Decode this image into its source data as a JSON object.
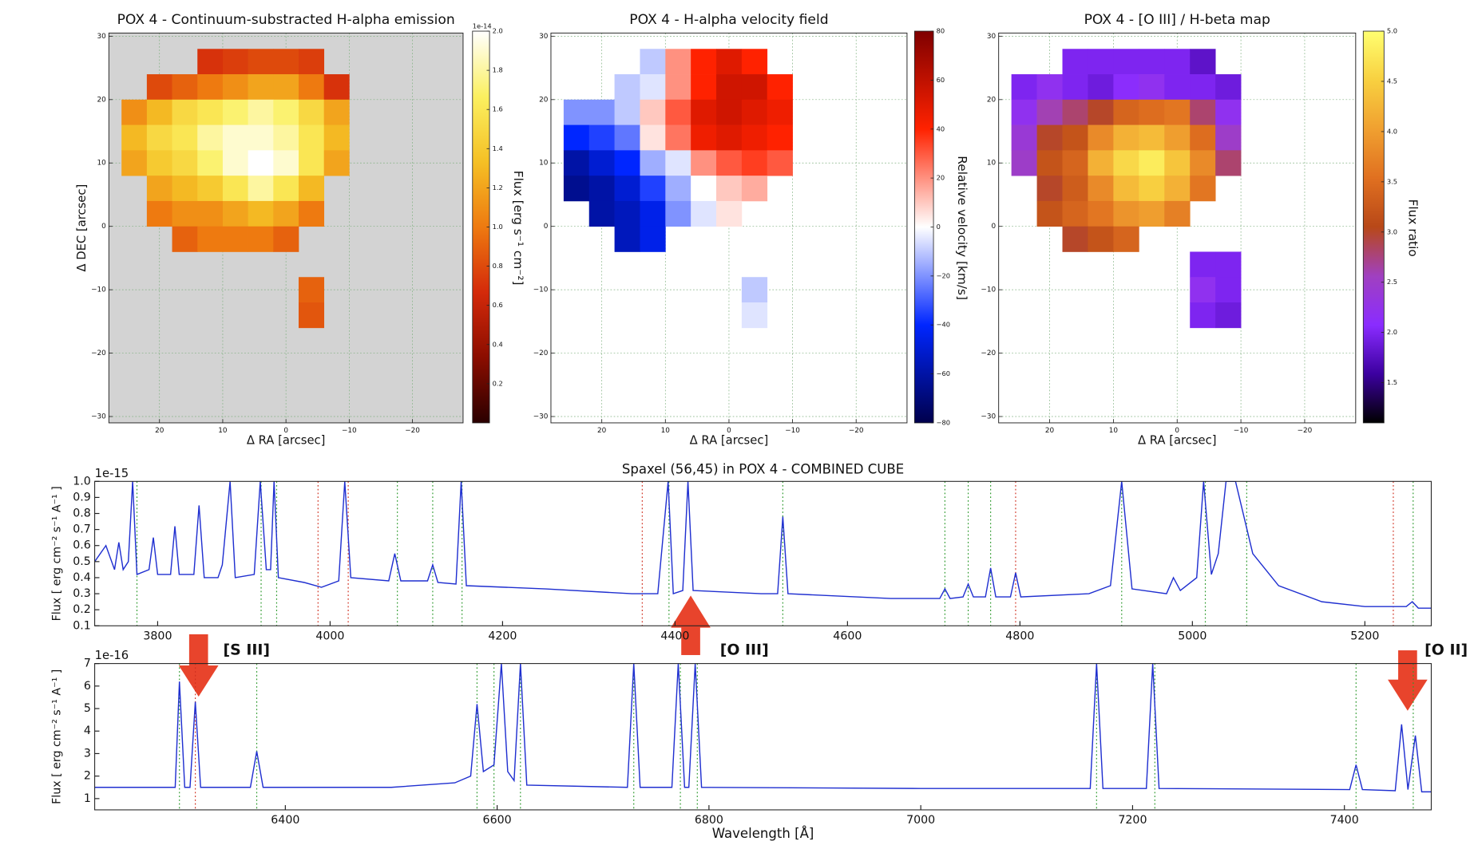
{
  "chart_data": [
    {
      "type": "heatmap",
      "title": "POX 4 - Continuum-substracted H-alpha emission",
      "xlabel": "Δ RA [arcsec]",
      "ylabel": "Δ DEC [arcsec]",
      "background": "#d3d3d3",
      "grid": true,
      "xlim": [
        28,
        -28
      ],
      "ylim": [
        -31,
        30.5
      ],
      "xticks": [
        20,
        10,
        0,
        {
          "value": -10,
          "label": "−10"
        },
        {
          "value": -20,
          "label": "−20"
        }
      ],
      "yticks": [
        {
          "value": -30,
          "label": "−30"
        },
        {
          "value": -20,
          "label": "−20"
        },
        {
          "value": -10,
          "label": "−10"
        },
        0,
        10,
        20,
        30
      ],
      "x": [
        24,
        20,
        16,
        12,
        8,
        4,
        0,
        -4,
        -8
      ],
      "y": [
        26,
        22,
        18,
        14,
        10,
        6,
        2,
        -2,
        -6,
        -10,
        -14
      ],
      "z": [
        [
          null,
          null,
          null,
          0.7,
          0.75,
          0.8,
          0.8,
          0.75,
          null
        ],
        [
          null,
          0.8,
          0.9,
          1.0,
          1.1,
          1.2,
          1.2,
          1.0,
          0.7
        ],
        [
          1.1,
          1.3,
          1.5,
          1.6,
          1.7,
          1.8,
          1.7,
          1.5,
          1.2
        ],
        [
          1.3,
          1.5,
          1.6,
          1.8,
          1.9,
          1.9,
          1.8,
          1.6,
          1.3
        ],
        [
          1.2,
          1.4,
          1.5,
          1.7,
          1.9,
          2.0,
          1.9,
          1.6,
          1.2
        ],
        [
          null,
          1.2,
          1.3,
          1.4,
          1.6,
          1.8,
          1.6,
          1.3,
          null
        ],
        [
          null,
          1.0,
          1.1,
          1.1,
          1.2,
          1.3,
          1.2,
          1.0,
          null
        ],
        [
          null,
          null,
          0.9,
          1.0,
          1.0,
          1.0,
          0.9,
          null,
          null
        ],
        [
          null,
          null,
          null,
          null,
          null,
          null,
          null,
          null,
          null
        ],
        [
          null,
          null,
          null,
          null,
          null,
          null,
          null,
          0.9,
          null
        ],
        [
          null,
          null,
          null,
          null,
          null,
          null,
          null,
          0.85,
          null
        ]
      ],
      "colorbar": {
        "label": "Flux [erg s⁻¹ cm⁻²]",
        "offset_label": "1e-14",
        "lim": [
          0,
          2
        ],
        "ticks": [
          0.2,
          0.4,
          0.6,
          0.8,
          {
            "value": 1,
            "label": "1.0"
          },
          1.2,
          1.4,
          1.6,
          1.8,
          {
            "value": 2,
            "label": "2.0"
          }
        ],
        "colors": [
          "#2a0000",
          "#8b0d00",
          "#d42a0a",
          "#ee7a10",
          "#f5c025",
          "#fbf060",
          "#ffffff"
        ]
      }
    },
    {
      "type": "heatmap",
      "title": "POX 4 - H-alpha velocity field",
      "xlabel": "Δ RA [arcsec]",
      "background": "#ffffff",
      "grid": true,
      "xlim": [
        28,
        -28
      ],
      "ylim": [
        -31,
        30.5
      ],
      "xticks": [
        20,
        10,
        0,
        {
          "value": -10,
          "label": "−10"
        },
        {
          "value": -20,
          "label": "−20"
        }
      ],
      "yticks": [
        {
          "value": -30,
          "label": "−30"
        },
        {
          "value": -20,
          "label": "−20"
        },
        {
          "value": -10,
          "label": "−10"
        },
        0,
        10,
        20,
        30
      ],
      "x": [
        24,
        20,
        16,
        12,
        8,
        4,
        0,
        -4,
        -8
      ],
      "y": [
        26,
        22,
        18,
        14,
        10,
        6,
        2,
        -2,
        -6,
        -10,
        -14
      ],
      "z": [
        [
          null,
          null,
          null,
          -10,
          20,
          40,
          50,
          40,
          null
        ],
        [
          null,
          null,
          -10,
          -5,
          20,
          40,
          55,
          55,
          40
        ],
        [
          -20,
          -20,
          -10,
          10,
          30,
          50,
          55,
          50,
          45
        ],
        [
          -40,
          -35,
          -25,
          5,
          25,
          45,
          50,
          45,
          40
        ],
        [
          -60,
          -50,
          -40,
          -15,
          -5,
          20,
          30,
          35,
          30
        ],
        [
          -65,
          -60,
          -50,
          -35,
          -15,
          0,
          10,
          15,
          null
        ],
        [
          null,
          -60,
          -55,
          -45,
          -20,
          -5,
          5,
          null,
          null
        ],
        [
          null,
          null,
          -55,
          -45,
          null,
          null,
          null,
          null,
          null
        ],
        [
          null,
          null,
          null,
          null,
          null,
          null,
          null,
          null,
          null
        ],
        [
          null,
          null,
          null,
          null,
          null,
          null,
          null,
          -10,
          null
        ],
        [
          null,
          null,
          null,
          null,
          null,
          null,
          null,
          -5,
          null
        ]
      ],
      "colorbar": {
        "label": "Relative velocity [km/s]",
        "lim": [
          -80,
          80
        ],
        "ticks": [
          {
            "value": -80,
            "label": "−80"
          },
          {
            "value": -60,
            "label": "−60"
          },
          {
            "value": -40,
            "label": "−40"
          },
          {
            "value": -20,
            "label": "−20"
          },
          0,
          20,
          40,
          60,
          80
        ],
        "colors": [
          "#00004c",
          "#0026ff",
          "#ffffff",
          "#ff2200",
          "#7f0000"
        ]
      }
    },
    {
      "type": "heatmap",
      "title": "POX 4 - [O III] / H-beta map",
      "xlabel": "Δ RA [arcsec]",
      "background": "#ffffff",
      "grid": true,
      "xlim": [
        28,
        -28
      ],
      "ylim": [
        -31,
        30.5
      ],
      "xticks": [
        20,
        10,
        0,
        {
          "value": -10,
          "label": "−10"
        },
        {
          "value": -20,
          "label": "−20"
        }
      ],
      "yticks": [
        {
          "value": -30,
          "label": "−30"
        },
        {
          "value": -20,
          "label": "−20"
        },
        {
          "value": -10,
          "label": "−10"
        },
        0,
        10,
        20,
        30
      ],
      "x": [
        24,
        20,
        16,
        12,
        8,
        4,
        0,
        -4,
        -8
      ],
      "y": [
        26,
        22,
        18,
        14,
        10,
        6,
        2,
        -2,
        -6,
        -10,
        -14
      ],
      "z": [
        [
          null,
          null,
          2.0,
          2.0,
          2.0,
          2.0,
          2.0,
          1.8,
          null
        ],
        [
          2.0,
          2.2,
          2.0,
          1.9,
          2.1,
          2.2,
          2.0,
          2.0,
          1.9
        ],
        [
          2.2,
          2.6,
          2.8,
          3.0,
          3.4,
          3.5,
          3.6,
          2.8,
          2.2
        ],
        [
          2.4,
          3.0,
          3.2,
          3.8,
          4.2,
          4.3,
          4.0,
          3.5,
          2.5
        ],
        [
          2.5,
          3.2,
          3.4,
          4.2,
          4.6,
          4.8,
          4.4,
          3.8,
          2.8
        ],
        [
          null,
          3.0,
          3.3,
          3.8,
          4.3,
          4.5,
          4.2,
          3.6,
          null
        ],
        [
          null,
          3.2,
          3.4,
          3.6,
          3.9,
          4.0,
          3.7,
          null,
          null
        ],
        [
          null,
          null,
          3.0,
          3.2,
          3.4,
          null,
          null,
          null,
          null
        ],
        [
          null,
          null,
          null,
          null,
          null,
          null,
          null,
          2.0,
          2.0
        ],
        [
          null,
          null,
          null,
          null,
          null,
          null,
          null,
          2.2,
          2.0
        ],
        [
          null,
          null,
          null,
          null,
          null,
          null,
          null,
          2.0,
          1.9
        ]
      ],
      "colorbar": {
        "label": "Flux ratio",
        "lim": [
          1.1,
          5.0
        ],
        "ticks": [
          1.5,
          {
            "value": 2,
            "label": "2.0"
          },
          2.5,
          {
            "value": 3,
            "label": "3.0"
          },
          3.5,
          {
            "value": 4,
            "label": "4.0"
          },
          4.5,
          {
            "value": 5,
            "label": "5.0"
          }
        ],
        "colors": [
          "#000000",
          "#3c00a0",
          "#8a2cff",
          "#a040c0",
          "#b84818",
          "#e07020",
          "#f0a030",
          "#f8d040",
          "#ffff70"
        ]
      }
    },
    {
      "type": "line",
      "title": "Spaxel (56,45) in POX 4 - COMBINED CUBE",
      "ylabel": "Flux [ erg cm⁻² s⁻¹ A⁻¹ ]",
      "offset_label": "1e-15",
      "color": "#1f2fd0",
      "xlim": [
        3727,
        5277
      ],
      "ylim": [
        0.1,
        1.0
      ],
      "xticks": [
        3800,
        4000,
        4200,
        4400,
        4600,
        4800,
        5000,
        5200
      ],
      "yticks": [
        0.1,
        0.2,
        0.3,
        0.4,
        0.5,
        0.6,
        0.7,
        0.8,
        0.9,
        {
          "value": 1,
          "label": "1.0"
        }
      ],
      "x": [
        3727,
        3740,
        3750,
        3755,
        3760,
        3766,
        3771,
        3776,
        3790,
        3795,
        3800,
        3815,
        3820,
        3825,
        3842,
        3848,
        3854,
        3870,
        3875,
        3884,
        3890,
        3912,
        3919,
        3926,
        3931,
        3935,
        3940,
        3970,
        3990,
        4010,
        4017,
        4024,
        4068,
        4075,
        4082,
        4113,
        4119,
        4125,
        4146,
        4152,
        4158,
        4250,
        4350,
        4380,
        4392,
        4398,
        4409,
        4415,
        4421,
        4500,
        4519,
        4525,
        4531,
        4650,
        4707,
        4713,
        4719,
        4734,
        4740,
        4746,
        4760,
        4766,
        4772,
        4789,
        4795,
        4801,
        4880,
        4905,
        4918,
        4930,
        4970,
        4978,
        4986,
        5005,
        5013,
        5022,
        5030,
        5039,
        5050,
        5070,
        5100,
        5150,
        5200,
        5248,
        5255,
        5262,
        5277
      ],
      "values": [
        0.5,
        0.6,
        0.45,
        0.62,
        0.45,
        0.5,
        1.0,
        0.42,
        0.45,
        0.65,
        0.42,
        0.42,
        0.72,
        0.42,
        0.42,
        0.85,
        0.4,
        0.4,
        0.48,
        1.0,
        0.4,
        0.42,
        1.0,
        0.45,
        0.45,
        1.0,
        0.4,
        0.37,
        0.34,
        0.38,
        1.0,
        0.4,
        0.38,
        0.55,
        0.38,
        0.38,
        0.48,
        0.37,
        0.36,
        1.0,
        0.35,
        0.33,
        0.3,
        0.3,
        1.0,
        0.3,
        0.32,
        1.0,
        0.32,
        0.3,
        0.3,
        0.78,
        0.3,
        0.27,
        0.27,
        0.33,
        0.27,
        0.28,
        0.36,
        0.28,
        0.28,
        0.46,
        0.28,
        0.28,
        0.43,
        0.28,
        0.3,
        0.35,
        1.0,
        0.33,
        0.3,
        0.4,
        0.32,
        0.4,
        1.0,
        0.42,
        0.55,
        1.0,
        1.0,
        0.55,
        0.35,
        0.25,
        0.22,
        0.22,
        0.25,
        0.21,
        0.21
      ],
      "reference_lines": [
        {
          "color": "#2e9a2e",
          "x": [
            3776,
            3920,
            3938,
            4078,
            4119,
            4153,
            4393,
            4525,
            4713,
            4740,
            4766,
            4918,
            5015,
            5063,
            5256
          ]
        },
        {
          "color": "#d03020",
          "x": [
            3986,
            4021,
            4362,
            4795,
            5233
          ]
        }
      ]
    },
    {
      "type": "line",
      "xlabel": "Wavelength [Å]",
      "ylabel": "Flux [ erg cm⁻² s⁻¹ A⁻¹ ]",
      "offset_label": "1e-16",
      "color": "#1f2fd0",
      "xlim": [
        6220,
        7482
      ],
      "ylim": [
        0.5,
        7
      ],
      "xticks": [
        6400,
        6600,
        6800,
        7000,
        7200,
        7400
      ],
      "yticks": [
        1,
        2,
        3,
        4,
        5,
        6,
        7
      ],
      "x": [
        6220,
        6290,
        6296,
        6300,
        6305,
        6310,
        6315,
        6320,
        6367,
        6373,
        6379,
        6500,
        6560,
        6575,
        6581,
        6587,
        6597,
        6604,
        6610,
        6616,
        6622,
        6628,
        6723,
        6729,
        6735,
        6765,
        6771,
        6777,
        6781,
        6787,
        6793,
        7000,
        7160,
        7166,
        7172,
        7213,
        7219,
        7225,
        7405,
        7411,
        7417,
        7448,
        7454,
        7460,
        7467,
        7473,
        7482
      ],
      "values": [
        1.5,
        1.5,
        1.5,
        6.2,
        1.5,
        1.5,
        5.3,
        1.5,
        1.5,
        3.1,
        1.5,
        1.5,
        1.7,
        2.0,
        5.2,
        2.2,
        2.5,
        7,
        2.2,
        1.8,
        7,
        1.6,
        1.5,
        7,
        1.5,
        1.5,
        7,
        1.5,
        1.5,
        7,
        1.5,
        1.45,
        1.45,
        7,
        1.45,
        1.45,
        7,
        1.45,
        1.4,
        2.5,
        1.4,
        1.35,
        4.3,
        1.4,
        3.8,
        1.3,
        1.3
      ],
      "reference_lines": [
        {
          "color": "#2e9a2e",
          "x": [
            6300,
            6373,
            6581,
            6597,
            6622,
            6729,
            6773,
            6789,
            7166,
            7221,
            7411,
            7465
          ]
        },
        {
          "color": "#d03020",
          "x": [
            6315
          ]
        }
      ]
    }
  ],
  "annotations": [
    "[S III]",
    "[O III]",
    "[O II]"
  ]
}
